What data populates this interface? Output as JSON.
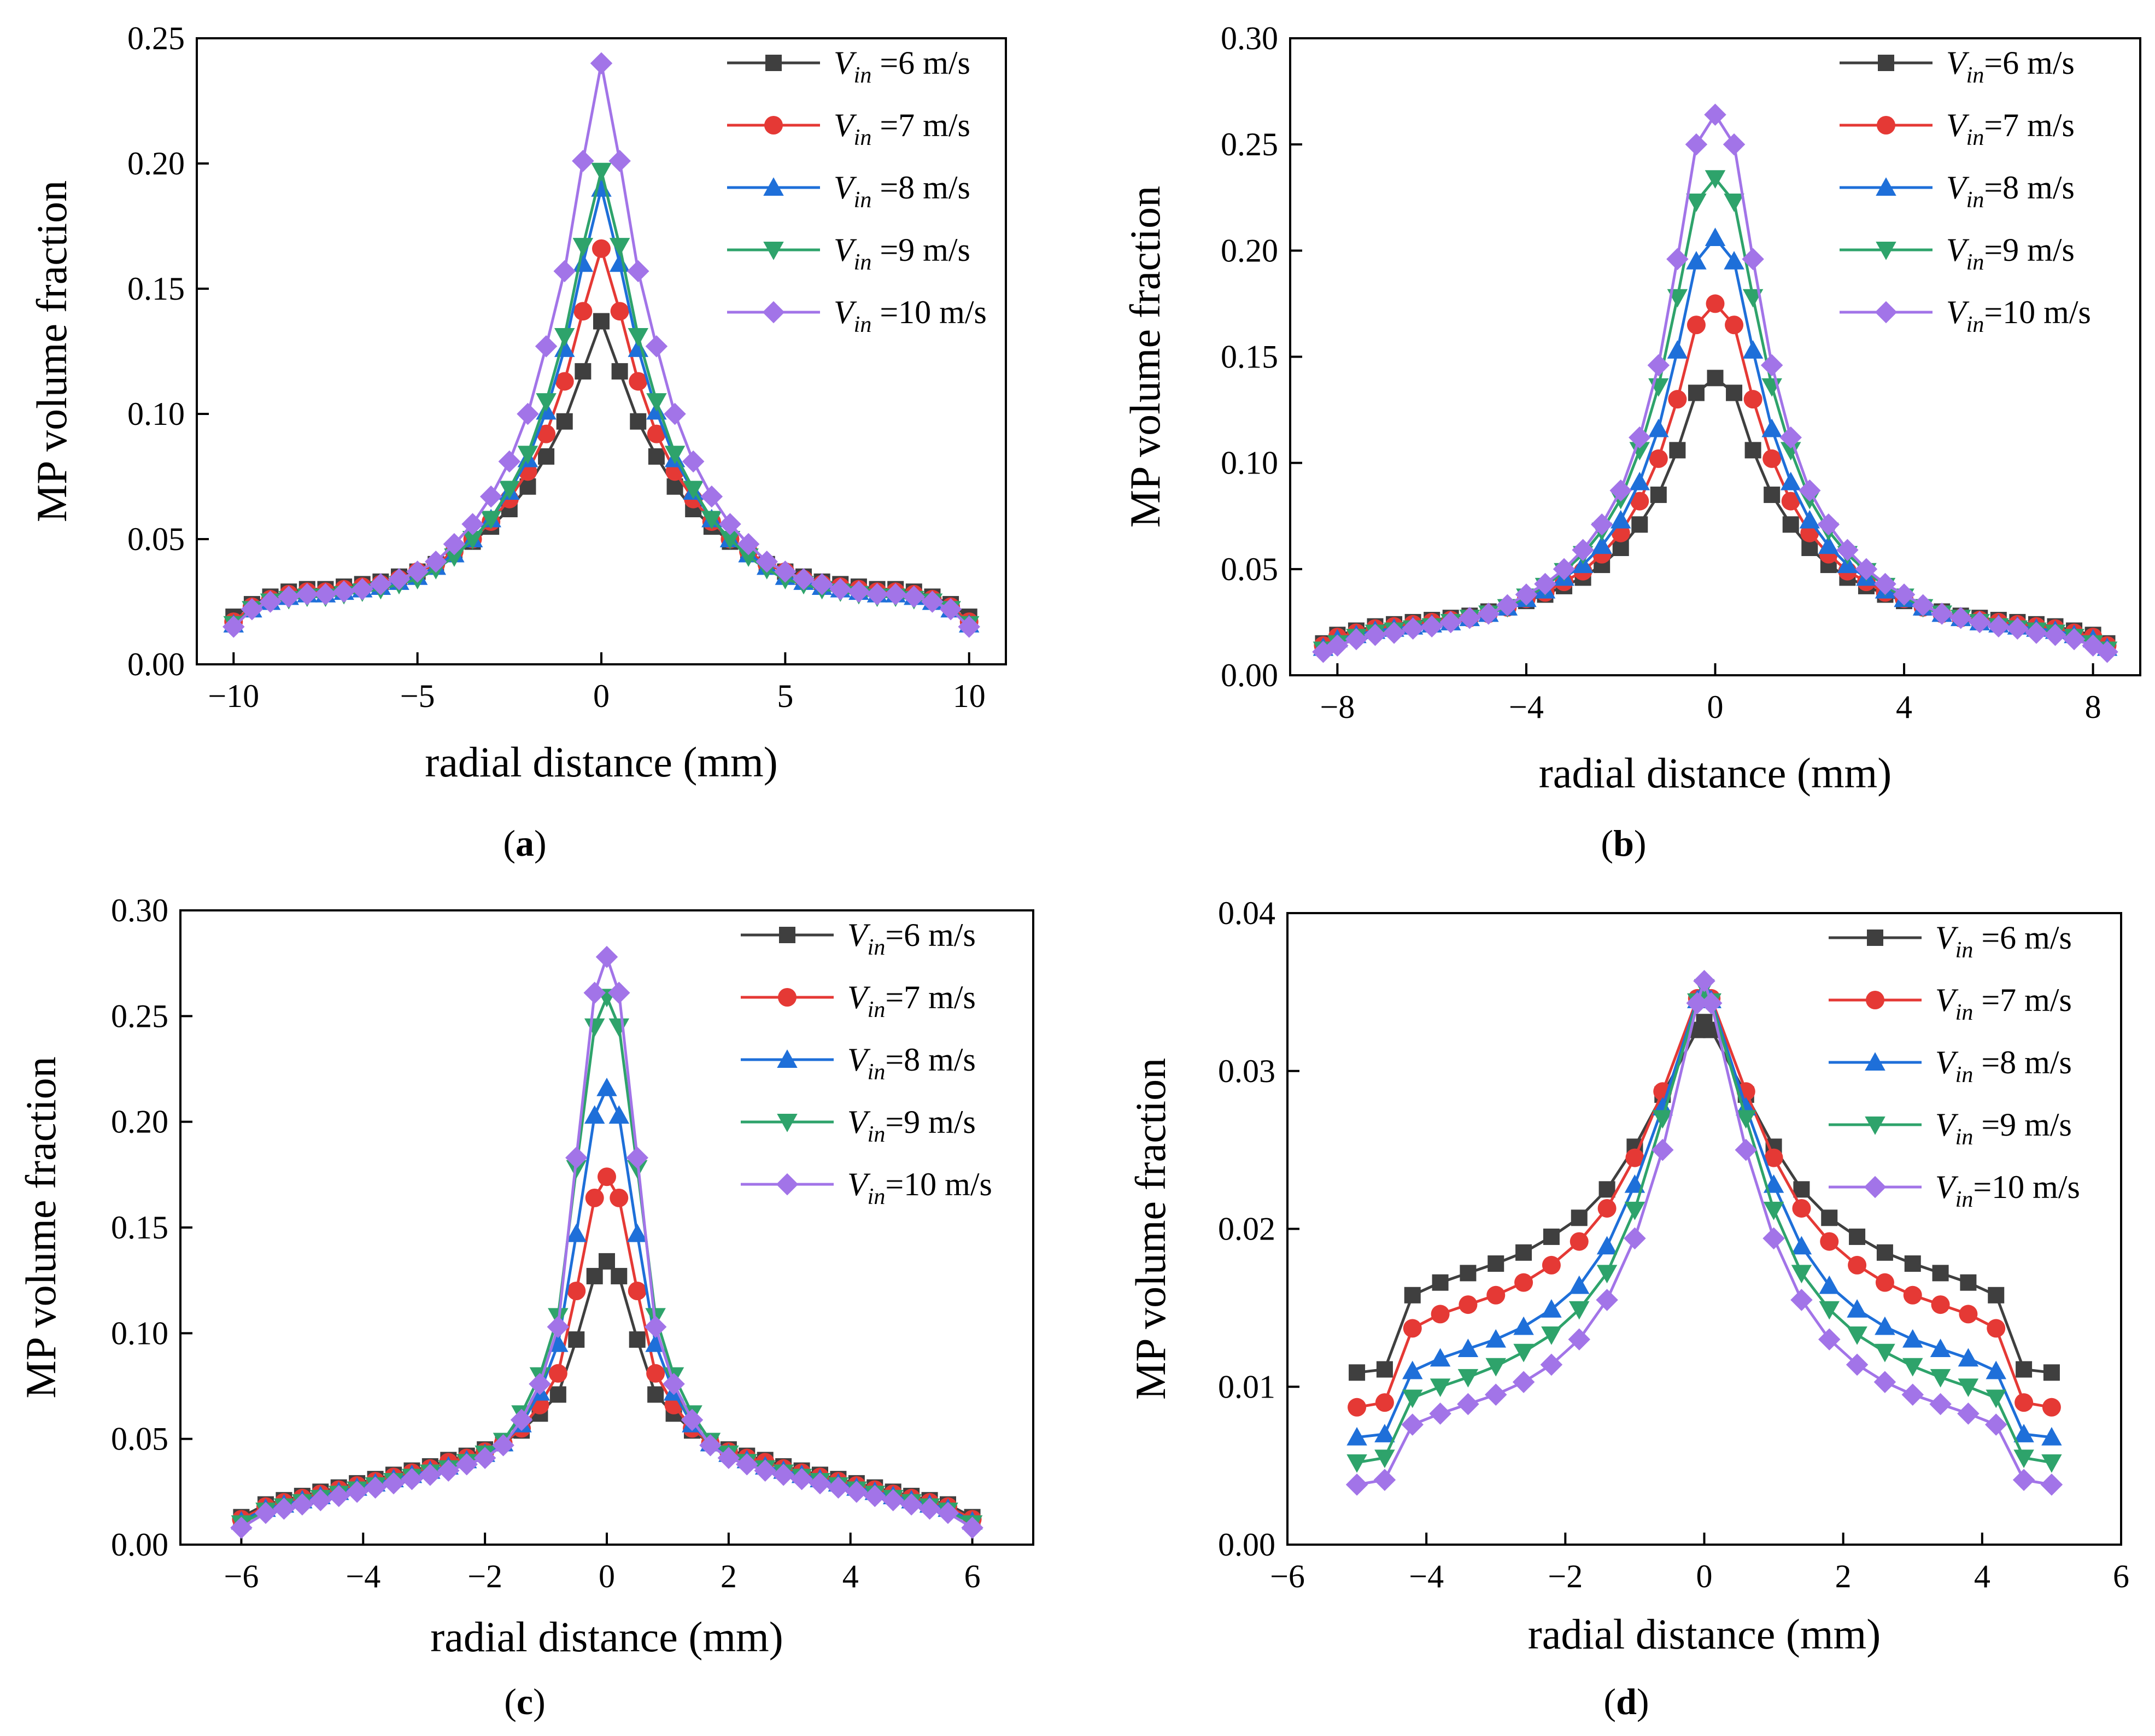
{
  "figure": {
    "series_colors": [
      "#3f3f3f",
      "#e53935",
      "#1e6fd9",
      "#2ea36b",
      "#a274e8"
    ],
    "series_markers": [
      "square",
      "circle",
      "triangle-up",
      "triangle-down",
      "diamond"
    ]
  },
  "chart_data": [
    {
      "type": "line",
      "panel": "a",
      "caption_letter": "a",
      "xlabel": "radial distance (mm)",
      "ylabel": "MP volume fraction",
      "xlim": [
        -11,
        11
      ],
      "ylim": [
        0,
        0.25
      ],
      "xticks": [
        -10,
        -5,
        0,
        5,
        10
      ],
      "xtick_labels": [
        "−10",
        "−5",
        "0",
        "5",
        "10"
      ],
      "yticks": [
        0,
        0.05,
        0.1,
        0.15,
        0.2,
        0.25
      ],
      "ytick_labels": [
        "0.00",
        "0.05",
        "0.10",
        "0.15",
        "0.20",
        "0.25"
      ],
      "legend_position": "top-right",
      "x": [
        0,
        0.5,
        1,
        1.5,
        2,
        2.5,
        3,
        3.5,
        4,
        4.5,
        5,
        5.5,
        6,
        6.5,
        7,
        7.5,
        8,
        8.5,
        9,
        9.5,
        10
      ],
      "series": [
        {
          "name": "6 m/s",
          "legend_sep": " =",
          "values": [
            0.137,
            0.117,
            0.097,
            0.083,
            0.071,
            0.062,
            0.055,
            0.049,
            0.044,
            0.04,
            0.037,
            0.035,
            0.033,
            0.032,
            0.031,
            0.03,
            0.03,
            0.029,
            0.027,
            0.024,
            0.019
          ]
        },
        {
          "name": "7 m/s",
          "legend_sep": " =",
          "values": [
            0.166,
            0.141,
            0.113,
            0.092,
            0.077,
            0.066,
            0.057,
            0.05,
            0.045,
            0.04,
            0.037,
            0.034,
            0.032,
            0.031,
            0.03,
            0.029,
            0.029,
            0.028,
            0.026,
            0.023,
            0.017
          ]
        },
        {
          "name": "8 m/s",
          "legend_sep": " =",
          "values": [
            0.19,
            0.16,
            0.126,
            0.101,
            0.082,
            0.069,
            0.058,
            0.05,
            0.044,
            0.039,
            0.035,
            0.033,
            0.031,
            0.03,
            0.029,
            0.028,
            0.028,
            0.027,
            0.025,
            0.022,
            0.016
          ]
        },
        {
          "name": "9 m/s",
          "legend_sep": " =",
          "values": [
            0.197,
            0.167,
            0.131,
            0.105,
            0.084,
            0.07,
            0.058,
            0.05,
            0.043,
            0.038,
            0.034,
            0.032,
            0.03,
            0.029,
            0.028,
            0.027,
            0.027,
            0.026,
            0.025,
            0.022,
            0.016
          ]
        },
        {
          "name": "10 m/s",
          "legend_sep": " =",
          "values": [
            0.24,
            0.201,
            0.157,
            0.127,
            0.1,
            0.081,
            0.067,
            0.056,
            0.048,
            0.041,
            0.037,
            0.034,
            0.032,
            0.03,
            0.029,
            0.028,
            0.028,
            0.027,
            0.025,
            0.022,
            0.015
          ]
        }
      ]
    },
    {
      "type": "line",
      "panel": "b",
      "caption_letter": "b",
      "xlabel": "radial distance (mm)",
      "ylabel": "MP volume fraction",
      "xlim": [
        -9,
        9
      ],
      "ylim": [
        0,
        0.3
      ],
      "xticks": [
        -8,
        -4,
        0,
        4,
        8
      ],
      "xtick_labels": [
        "−8",
        "−4",
        "0",
        "4",
        "8"
      ],
      "yticks": [
        0,
        0.05,
        0.1,
        0.15,
        0.2,
        0.25,
        0.3
      ],
      "ytick_labels": [
        "0.00",
        "0.05",
        "0.10",
        "0.15",
        "0.20",
        "0.25",
        "0.30"
      ],
      "legend_position": "top-right",
      "x": [
        0,
        0.4,
        0.8,
        1.2,
        1.6,
        2.0,
        2.4,
        2.8,
        3.2,
        3.6,
        4.0,
        4.4,
        4.8,
        5.2,
        5.6,
        6.0,
        6.4,
        6.8,
        7.2,
        7.6,
        8.0,
        8.3
      ],
      "series": [
        {
          "name": "6 m/s",
          "legend_sep": "=",
          "values": [
            0.14,
            0.133,
            0.106,
            0.085,
            0.071,
            0.06,
            0.052,
            0.046,
            0.042,
            0.038,
            0.035,
            0.032,
            0.03,
            0.028,
            0.027,
            0.026,
            0.025,
            0.024,
            0.023,
            0.021,
            0.019,
            0.015
          ]
        },
        {
          "name": "7 m/s",
          "legend_sep": "=",
          "values": [
            0.175,
            0.165,
            0.13,
            0.102,
            0.082,
            0.067,
            0.057,
            0.049,
            0.044,
            0.039,
            0.036,
            0.032,
            0.029,
            0.027,
            0.026,
            0.025,
            0.024,
            0.023,
            0.022,
            0.02,
            0.018,
            0.014
          ]
        },
        {
          "name": "8 m/s",
          "legend_sep": "=",
          "values": [
            0.206,
            0.195,
            0.153,
            0.116,
            0.091,
            0.073,
            0.061,
            0.052,
            0.046,
            0.04,
            0.036,
            0.032,
            0.029,
            0.027,
            0.025,
            0.024,
            0.023,
            0.022,
            0.021,
            0.019,
            0.017,
            0.013
          ]
        },
        {
          "name": "9 m/s",
          "legend_sep": "=",
          "values": [
            0.234,
            0.223,
            0.178,
            0.136,
            0.106,
            0.083,
            0.068,
            0.057,
            0.049,
            0.042,
            0.037,
            0.032,
            0.029,
            0.027,
            0.025,
            0.023,
            0.022,
            0.021,
            0.02,
            0.018,
            0.015,
            0.012
          ]
        },
        {
          "name": "10 m/s",
          "legend_sep": "=",
          "values": [
            0.264,
            0.25,
            0.196,
            0.146,
            0.112,
            0.087,
            0.071,
            0.059,
            0.05,
            0.043,
            0.038,
            0.033,
            0.029,
            0.027,
            0.025,
            0.023,
            0.022,
            0.02,
            0.019,
            0.017,
            0.014,
            0.011
          ]
        }
      ]
    },
    {
      "type": "line",
      "panel": "c",
      "caption_letter": "c",
      "xlabel": "radial distance (mm)",
      "ylabel": "MP volume fraction",
      "xlim": [
        -7,
        7
      ],
      "ylim": [
        0,
        0.3
      ],
      "xticks": [
        -6,
        -4,
        -2,
        0,
        2,
        4,
        6
      ],
      "xtick_labels": [
        "−6",
        "−4",
        "−2",
        "0",
        "2",
        "4",
        "6"
      ],
      "yticks": [
        0,
        0.05,
        0.1,
        0.15,
        0.2,
        0.25,
        0.3
      ],
      "ytick_labels": [
        "0.00",
        "0.05",
        "0.10",
        "0.15",
        "0.20",
        "0.25",
        "0.30"
      ],
      "legend_position": "top-right",
      "x": [
        0,
        0.2,
        0.5,
        0.8,
        1.1,
        1.4,
        1.7,
        2.0,
        2.3,
        2.6,
        2.9,
        3.2,
        3.5,
        3.8,
        4.1,
        4.4,
        4.7,
        5.0,
        5.3,
        5.6,
        6.0
      ],
      "series": [
        {
          "name": "6 m/s",
          "legend_sep": "=",
          "values": [
            0.134,
            0.127,
            0.097,
            0.071,
            0.062,
            0.054,
            0.048,
            0.045,
            0.042,
            0.04,
            0.037,
            0.035,
            0.033,
            0.031,
            0.029,
            0.027,
            0.025,
            0.023,
            0.021,
            0.019,
            0.013
          ]
        },
        {
          "name": "7 m/s",
          "legend_sep": "=",
          "values": [
            0.174,
            0.164,
            0.12,
            0.081,
            0.066,
            0.055,
            0.048,
            0.044,
            0.041,
            0.039,
            0.036,
            0.034,
            0.032,
            0.03,
            0.028,
            0.026,
            0.024,
            0.022,
            0.02,
            0.018,
            0.012
          ]
        },
        {
          "name": "8 m/s",
          "legend_sep": "=",
          "values": [
            0.216,
            0.203,
            0.147,
            0.095,
            0.072,
            0.057,
            0.048,
            0.043,
            0.04,
            0.037,
            0.035,
            0.033,
            0.031,
            0.029,
            0.027,
            0.025,
            0.023,
            0.021,
            0.019,
            0.017,
            0.011
          ]
        },
        {
          "name": "9 m/s",
          "legend_sep": "=",
          "values": [
            0.259,
            0.245,
            0.178,
            0.108,
            0.08,
            0.062,
            0.049,
            0.043,
            0.039,
            0.036,
            0.034,
            0.032,
            0.03,
            0.028,
            0.026,
            0.024,
            0.022,
            0.02,
            0.018,
            0.016,
            0.01
          ]
        },
        {
          "name": "10 m/s",
          "legend_sep": "=",
          "values": [
            0.278,
            0.261,
            0.183,
            0.103,
            0.076,
            0.059,
            0.047,
            0.041,
            0.038,
            0.035,
            0.033,
            0.031,
            0.029,
            0.027,
            0.025,
            0.023,
            0.021,
            0.019,
            0.017,
            0.015,
            0.008
          ]
        }
      ]
    },
    {
      "type": "line",
      "panel": "d",
      "caption_letter": "d",
      "xlabel": "radial distance (mm)",
      "ylabel": "MP volume fraction",
      "xlim": [
        -6,
        6
      ],
      "ylim": [
        0,
        0.04
      ],
      "xticks": [
        -6,
        -4,
        -2,
        0,
        2,
        4,
        6
      ],
      "xtick_labels": [
        "−6",
        "−4",
        "−2",
        "0",
        "2",
        "4",
        "6"
      ],
      "yticks": [
        0,
        0.01,
        0.02,
        0.03,
        0.04
      ],
      "ytick_labels": [
        "0.00",
        "0.01",
        "0.02",
        "0.03",
        "0.04"
      ],
      "legend_position": "top-right",
      "x": [
        0,
        0.1,
        0.6,
        1.0,
        1.4,
        1.8,
        2.2,
        2.6,
        3.0,
        3.4,
        3.8,
        4.2,
        4.6,
        5.0
      ],
      "series": [
        {
          "name": "6 m/s",
          "legend_sep": " =",
          "values": [
            0.0331,
            0.0326,
            0.0285,
            0.0252,
            0.0225,
            0.0207,
            0.0195,
            0.0185,
            0.0178,
            0.0172,
            0.0166,
            0.0158,
            0.0111,
            0.0109
          ]
        },
        {
          "name": "7 m/s",
          "legend_sep": " =",
          "values": [
            0.0347,
            0.0346,
            0.0287,
            0.0245,
            0.0213,
            0.0192,
            0.0177,
            0.0166,
            0.0158,
            0.0152,
            0.0146,
            0.0137,
            0.009,
            0.0087
          ]
        },
        {
          "name": "8 m/s",
          "legend_sep": " =",
          "values": [
            0.0351,
            0.0345,
            0.0277,
            0.0228,
            0.0189,
            0.0164,
            0.0149,
            0.0138,
            0.013,
            0.0124,
            0.0118,
            0.011,
            0.007,
            0.0068
          ]
        },
        {
          "name": "9 m/s",
          "legend_sep": " =",
          "values": [
            0.0353,
            0.0344,
            0.027,
            0.0212,
            0.0172,
            0.0149,
            0.0133,
            0.0122,
            0.0113,
            0.0106,
            0.01,
            0.0093,
            0.0055,
            0.0052
          ]
        },
        {
          "name": "10 m/s",
          "legend_sep": "=",
          "values": [
            0.0357,
            0.0343,
            0.025,
            0.0194,
            0.0155,
            0.013,
            0.0114,
            0.0103,
            0.0095,
            0.0089,
            0.0083,
            0.0076,
            0.0041,
            0.0038
          ]
        }
      ]
    }
  ]
}
